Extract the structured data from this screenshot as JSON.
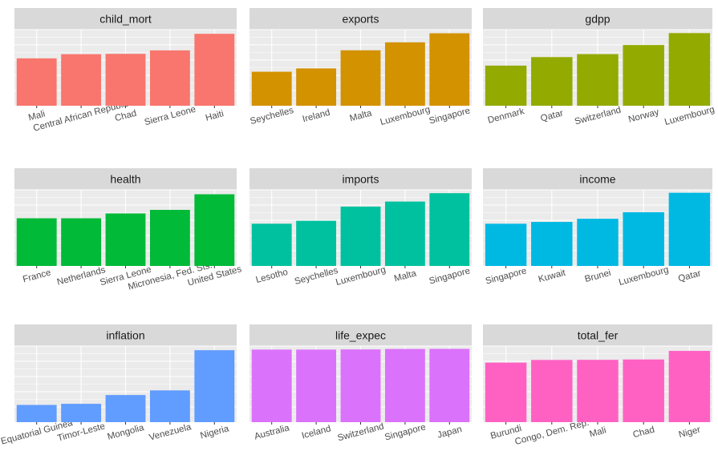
{
  "chart_data": [
    {
      "type": "bar",
      "title": "child_mort",
      "categories": [
        "Mali",
        "Central African Republic",
        "Chad",
        "Sierra Leone",
        "Haiti"
      ],
      "values": [
        137,
        149,
        150,
        160,
        208
      ],
      "ylim": [
        0,
        220
      ],
      "color": "#F8766D"
    },
    {
      "type": "bar",
      "title": "exports",
      "categories": [
        "Seychelles",
        "Ireland",
        "Malta",
        "Luxembourg",
        "Singapore"
      ],
      "values": [
        93.8,
        103,
        153,
        175,
        200
      ],
      "ylim": [
        0,
        210
      ],
      "color": "#D39200"
    },
    {
      "type": "bar",
      "title": "gdpp",
      "categories": [
        "Denmark",
        "Qatar",
        "Switzerland",
        "Norway",
        "Luxembourg"
      ],
      "values": [
        58000,
        70300,
        74600,
        87800,
        105000
      ],
      "ylim": [
        0,
        110000
      ],
      "color": "#93AA00"
    },
    {
      "type": "bar",
      "title": "health",
      "categories": [
        "France",
        "Netherlands",
        "Sierra Leone",
        "Micronesia, Fed. Sts.",
        "United States"
      ],
      "values": [
        11.9,
        11.9,
        13.1,
        14.0,
        17.9
      ],
      "ylim": [
        0,
        19
      ],
      "color": "#00BA38"
    },
    {
      "type": "bar",
      "title": "imports",
      "categories": [
        "Lesotho",
        "Seychelles",
        "Luxembourg",
        "Malta",
        "Singapore"
      ],
      "values": [
        101,
        108,
        142,
        154,
        174
      ],
      "ylim": [
        0,
        182
      ],
      "color": "#00C19F"
    },
    {
      "type": "bar",
      "title": "income",
      "categories": [
        "Singapore",
        "Kuwait",
        "Brunei",
        "Luxembourg",
        "Qatar"
      ],
      "values": [
        72100,
        75200,
        80600,
        91700,
        125000
      ],
      "ylim": [
        0,
        130000
      ],
      "color": "#00B9E3"
    },
    {
      "type": "bar",
      "title": "inflation",
      "categories": [
        "Equatorial Guinea",
        "Timor-Leste",
        "Mongolia",
        "Venezuela",
        "Nigeria"
      ],
      "values": [
        24.9,
        26.5,
        39.2,
        45.9,
        104
      ],
      "ylim": [
        0,
        110
      ],
      "color": "#619CFF"
    },
    {
      "type": "bar",
      "title": "life_expec",
      "categories": [
        "Australia",
        "Iceland",
        "Switzerland",
        "Singapore",
        "Japan"
      ],
      "values": [
        82.0,
        82.0,
        82.2,
        82.7,
        82.8
      ],
      "ylim": [
        0,
        86
      ],
      "color": "#DB72FB"
    },
    {
      "type": "bar",
      "title": "total_fer",
      "categories": [
        "Burundi",
        "Congo, Dem. Rep.",
        "Mali",
        "Chad",
        "Niger"
      ],
      "values": [
        6.26,
        6.54,
        6.55,
        6.59,
        7.49
      ],
      "ylim": [
        0,
        8.0
      ],
      "color": "#FF61C3"
    }
  ]
}
